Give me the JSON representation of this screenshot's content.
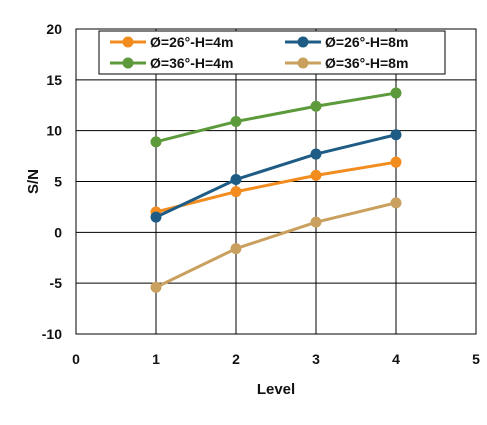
{
  "chart_data": {
    "type": "line",
    "xlabel": "Level",
    "ylabel": "S/N",
    "xlim": [
      0,
      5
    ],
    "ylim": [
      -10,
      20
    ],
    "x_ticks": [
      "0",
      "1",
      "2",
      "3",
      "4",
      "5"
    ],
    "y_ticks": [
      "-10",
      "-5",
      "0",
      "5",
      "10",
      "15",
      "20"
    ],
    "grid": true,
    "legend_position": "top",
    "x": [
      1,
      2,
      3,
      4
    ],
    "series": [
      {
        "name": "Ø=26°-H=4m",
        "color": "#F28C1E",
        "values": [
          2.0,
          4.0,
          5.6,
          6.9
        ]
      },
      {
        "name": "Ø=26°-H=8m",
        "color": "#1F5C85",
        "values": [
          1.5,
          5.2,
          7.7,
          9.6
        ]
      },
      {
        "name": "Ø=36°-H=4m",
        "color": "#5C9A3C",
        "values": [
          8.9,
          10.9,
          12.4,
          13.7
        ]
      },
      {
        "name": "Ø=36°-H=8m",
        "color": "#C9A05E",
        "values": [
          -5.4,
          -1.6,
          1.0,
          2.9
        ]
      }
    ]
  }
}
